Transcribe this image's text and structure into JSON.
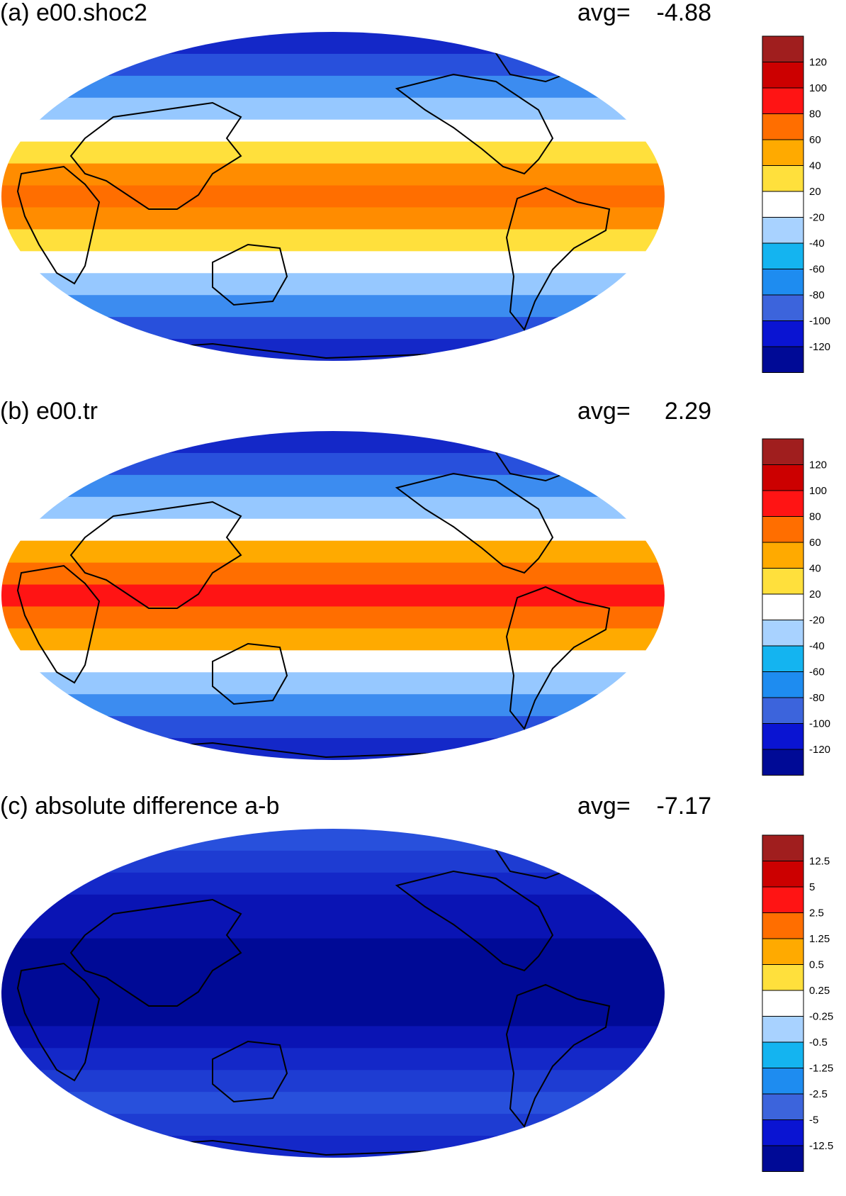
{
  "panels": [
    {
      "title": "(a) e00.shoc2",
      "avg_label": "avg=",
      "avg_value": "-4.88",
      "colorbar": {
        "labels": [
          "120",
          "100",
          "80",
          "60",
          "40",
          "20",
          "-20",
          "-40",
          "-60",
          "-80",
          "-100",
          "-120"
        ],
        "colors": [
          "#a01e1e",
          "#cc0000",
          "#ff1414",
          "#ff6e00",
          "#ffaa00",
          "#ffe03c",
          "#ffffff",
          "#a8d2ff",
          "#14b4f0",
          "#1e8cf0",
          "#3c64dc",
          "#0a14d2",
          "#000a96"
        ]
      },
      "bands": [
        "#1428c8",
        "#2850dc",
        "#3c8cf0",
        "#96c8ff",
        "#ffffff",
        "#ffe03c",
        "#ff8c00",
        "#ff6e00",
        "#ff8c00",
        "#ffe03c",
        "#ffffff",
        "#96c8ff",
        "#3c8cf0",
        "#2850dc",
        "#1428c8"
      ]
    },
    {
      "title": "(b) e00.tr",
      "avg_label": "avg=",
      "avg_value": "2.29",
      "colorbar": {
        "labels": [
          "120",
          "100",
          "80",
          "60",
          "40",
          "20",
          "-20",
          "-40",
          "-60",
          "-80",
          "-100",
          "-120"
        ],
        "colors": [
          "#a01e1e",
          "#cc0000",
          "#ff1414",
          "#ff6e00",
          "#ffaa00",
          "#ffe03c",
          "#ffffff",
          "#a8d2ff",
          "#14b4f0",
          "#1e8cf0",
          "#3c64dc",
          "#0a14d2",
          "#000a96"
        ]
      },
      "bands": [
        "#1428c8",
        "#2850dc",
        "#3c8cf0",
        "#96c8ff",
        "#ffffff",
        "#ffaa00",
        "#ff6e00",
        "#ff1414",
        "#ff6e00",
        "#ffaa00",
        "#ffffff",
        "#96c8ff",
        "#3c8cf0",
        "#2850dc",
        "#1428c8"
      ]
    },
    {
      "title": "(c) absolute difference a-b",
      "avg_label": "avg=",
      "avg_value": "-7.17",
      "colorbar": {
        "labels": [
          "12.5",
          "5",
          "2.5",
          "1.25",
          "0.5",
          "0.25",
          "-0.25",
          "-0.5",
          "-1.25",
          "-2.5",
          "-5",
          "-12.5"
        ],
        "colors": [
          "#a01e1e",
          "#cc0000",
          "#ff1414",
          "#ff6e00",
          "#ffaa00",
          "#ffe03c",
          "#ffffff",
          "#a8d2ff",
          "#14b4f0",
          "#1e8cf0",
          "#3c64dc",
          "#0a14d2",
          "#000a96"
        ]
      },
      "bands": [
        "#2850dc",
        "#1e3cd2",
        "#1428c8",
        "#0a14b4",
        "#0a14b4",
        "#000a96",
        "#000a96",
        "#000a96",
        "#000a96",
        "#0a14b4",
        "#1428c8",
        "#1e3cd2",
        "#2850dc",
        "#1e3cd2",
        "#1428c8"
      ]
    }
  ]
}
